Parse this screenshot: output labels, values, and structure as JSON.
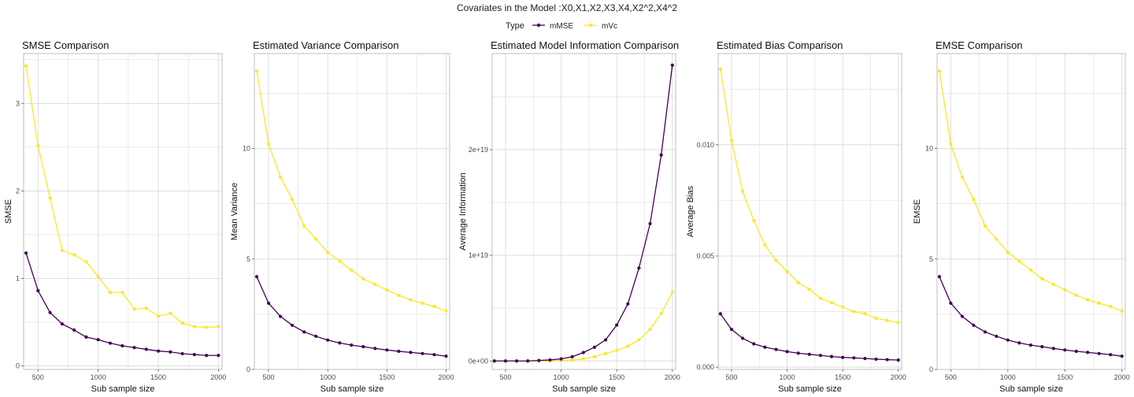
{
  "figure": {
    "title": "Covariates in the Model :X0,X1,X2,X3,X4,X2^2,X4^2",
    "legend_title": "Type",
    "legend_placement": "top-center"
  },
  "colors": {
    "mMSE": "#440154",
    "mVc": "#FDE725",
    "grid": "#DEDEDE",
    "panel_border": "#BFBFBF"
  },
  "chart_data": [
    {
      "type": "line",
      "title": "SMSE Comparison",
      "xlabel": "Sub sample size",
      "ylabel": "SMSE",
      "xlim": [
        380,
        2030
      ],
      "ylim": [
        -0.04,
        3.57
      ],
      "xticks": [
        500,
        1000,
        1500,
        2000
      ],
      "xtick_labels": [
        "500",
        "1000",
        "1500",
        "2000"
      ],
      "yticks": [
        0,
        1,
        2,
        3
      ],
      "ytick_labels": [
        "0",
        "1",
        "2",
        "3"
      ],
      "grid": true,
      "x": [
        400,
        500,
        600,
        700,
        800,
        900,
        1000,
        1100,
        1200,
        1300,
        1400,
        1500,
        1600,
        1700,
        1800,
        1900,
        2000
      ],
      "series": [
        {
          "name": "mMSE",
          "values": [
            1.29,
            0.86,
            0.61,
            0.48,
            0.41,
            0.33,
            0.3,
            0.26,
            0.23,
            0.21,
            0.19,
            0.17,
            0.16,
            0.14,
            0.13,
            0.12,
            0.12
          ]
        },
        {
          "name": "mVc",
          "values": [
            3.43,
            2.52,
            1.92,
            1.32,
            1.27,
            1.19,
            1.02,
            0.84,
            0.84,
            0.65,
            0.66,
            0.57,
            0.6,
            0.49,
            0.45,
            0.44,
            0.45
          ]
        }
      ]
    },
    {
      "type": "line",
      "title": "Estimated Variance Comparison",
      "xlabel": "Sub sample size",
      "ylabel": "Mean Variance",
      "xlim": [
        380,
        2030
      ],
      "ylim": [
        0,
        14.3
      ],
      "xticks": [
        500,
        1000,
        1500,
        2000
      ],
      "xtick_labels": [
        "500",
        "1000",
        "1500",
        "2000"
      ],
      "yticks": [
        0,
        5,
        10
      ],
      "ytick_labels": [
        "0",
        "5",
        "10"
      ],
      "grid": true,
      "x": [
        400,
        500,
        600,
        700,
        800,
        900,
        1000,
        1100,
        1200,
        1300,
        1400,
        1500,
        1600,
        1700,
        1800,
        1900,
        2000
      ],
      "series": [
        {
          "name": "mMSE",
          "values": [
            4.2,
            3.0,
            2.4,
            2.0,
            1.7,
            1.5,
            1.33,
            1.2,
            1.1,
            1.03,
            0.95,
            0.88,
            0.82,
            0.77,
            0.72,
            0.67,
            0.6
          ]
        },
        {
          "name": "mVc",
          "values": [
            13.5,
            10.2,
            8.7,
            7.7,
            6.5,
            5.9,
            5.3,
            4.9,
            4.5,
            4.1,
            3.85,
            3.6,
            3.35,
            3.15,
            3.0,
            2.85,
            2.65
          ]
        }
      ]
    },
    {
      "type": "line",
      "title": "Estimated Model Information Comparison",
      "xlabel": "Sub sample size",
      "ylabel": "Average Information",
      "xlim": [
        380,
        2030
      ],
      "ylim": [
        -8e+17,
        2.91e+19
      ],
      "xticks": [
        500,
        1000,
        1500,
        2000
      ],
      "xtick_labels": [
        "500",
        "1000",
        "1500",
        "2000"
      ],
      "yticks": [
        0,
        1e+19,
        2e+19
      ],
      "ytick_labels": [
        "0e+00",
        "1e+19",
        "2e+19"
      ],
      "grid": true,
      "x": [
        400,
        500,
        600,
        700,
        800,
        900,
        1000,
        1100,
        1200,
        1300,
        1400,
        1500,
        1600,
        1700,
        1800,
        1900,
        2000
      ],
      "series": [
        {
          "name": "mMSE",
          "values": [
            0,
            0,
            0,
            0,
            5e+16,
            1e+17,
            2e+17,
            4e+17,
            8e+17,
            1.3e+18,
            2e+18,
            3.4e+18,
            5.4e+18,
            8.8e+18,
            1.3e+19,
            1.95e+19,
            2.8e+19
          ]
        },
        {
          "name": "mVc",
          "values": [
            0,
            0,
            0,
            0,
            0,
            2e+16,
            5e+16,
            1e+17,
            2e+17,
            4e+17,
            7e+17,
            1e+18,
            1.4e+18,
            2e+18,
            3e+18,
            4.5e+18,
            6.5e+18
          ]
        }
      ]
    },
    {
      "type": "line",
      "title": "Estimated Bias Comparison",
      "xlabel": "Sub sample size",
      "ylabel": "Average Bias",
      "xlim": [
        380,
        2030
      ],
      "ylim": [
        -0.0001,
        0.0141
      ],
      "xticks": [
        500,
        1000,
        1500,
        2000
      ],
      "xtick_labels": [
        "500",
        "1000",
        "1500",
        "2000"
      ],
      "yticks": [
        0,
        0.005,
        0.01
      ],
      "ytick_labels": [
        "0.000",
        "0.005",
        "0.010"
      ],
      "grid": true,
      "x": [
        400,
        500,
        600,
        700,
        800,
        900,
        1000,
        1100,
        1200,
        1300,
        1400,
        1500,
        1600,
        1700,
        1800,
        1900,
        2000
      ],
      "series": [
        {
          "name": "mMSE",
          "values": [
            0.0024,
            0.0017,
            0.0013,
            0.00105,
            0.0009,
            0.0008,
            0.0007,
            0.00063,
            0.00058,
            0.00053,
            0.00048,
            0.00044,
            0.00042,
            0.00039,
            0.00036,
            0.00034,
            0.00032
          ]
        },
        {
          "name": "mVc",
          "values": [
            0.0134,
            0.0102,
            0.0079,
            0.0066,
            0.0055,
            0.0048,
            0.0043,
            0.0038,
            0.0035,
            0.0031,
            0.0029,
            0.0027,
            0.0025,
            0.0024,
            0.0022,
            0.0021,
            0.002
          ]
        }
      ]
    },
    {
      "type": "line",
      "title": "EMSE Comparison",
      "xlabel": "Sub sample size",
      "ylabel": "EMSE",
      "xlim": [
        380,
        2030
      ],
      "ylim": [
        0,
        14.3
      ],
      "xticks": [
        500,
        1000,
        1500,
        2000
      ],
      "xtick_labels": [
        "500",
        "1000",
        "1500",
        "2000"
      ],
      "yticks": [
        0,
        5,
        10
      ],
      "ytick_labels": [
        "0",
        "5",
        "10"
      ],
      "grid": true,
      "x": [
        400,
        500,
        600,
        700,
        800,
        900,
        1000,
        1100,
        1200,
        1300,
        1400,
        1500,
        1600,
        1700,
        1800,
        1900,
        2000
      ],
      "series": [
        {
          "name": "mMSE",
          "values": [
            4.2,
            3.0,
            2.4,
            2.0,
            1.7,
            1.5,
            1.33,
            1.2,
            1.1,
            1.03,
            0.95,
            0.88,
            0.82,
            0.77,
            0.72,
            0.67,
            0.6
          ]
        },
        {
          "name": "mVc",
          "values": [
            13.5,
            10.2,
            8.7,
            7.7,
            6.5,
            5.9,
            5.3,
            4.9,
            4.5,
            4.1,
            3.85,
            3.6,
            3.35,
            3.15,
            3.0,
            2.85,
            2.65
          ]
        }
      ]
    }
  ]
}
